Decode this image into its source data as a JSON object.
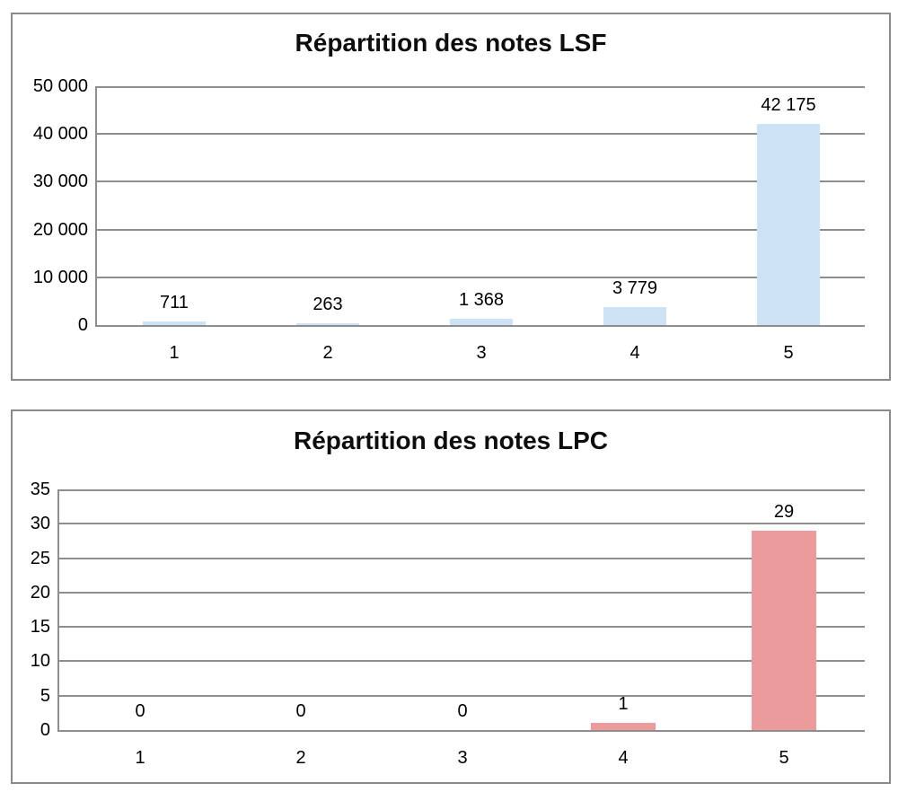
{
  "colors": {
    "bar_blue": "#CCE3F5",
    "bar_pink": "#EC9B9D",
    "gridline": "#8E8E8E",
    "panel_border": "#8A8A8A",
    "text": "#000000",
    "background": "#FFFFFF"
  },
  "chart_data": [
    {
      "type": "bar",
      "title": "Répartition des notes LSF",
      "categories": [
        "1",
        "2",
        "3",
        "4",
        "5"
      ],
      "values": [
        711,
        263,
        1368,
        3779,
        42175
      ],
      "data_labels": [
        "711",
        "263",
        "1 368",
        "3 779",
        "42 175"
      ],
      "xlabel": "",
      "ylabel": "",
      "ylim": [
        0,
        50000
      ],
      "y_tick_interval": 10000,
      "y_tick_labels": [
        "50 000",
        "40 000",
        "30 000",
        "20 000",
        "10 000",
        "0"
      ],
      "grid": true,
      "legend": "none",
      "bar_color": "#CCE3F5"
    },
    {
      "type": "bar",
      "title": "Répartition des notes LPC",
      "categories": [
        "1",
        "2",
        "3",
        "4",
        "5"
      ],
      "values": [
        0,
        0,
        0,
        1,
        29
      ],
      "data_labels": [
        "0",
        "0",
        "0",
        "1",
        "29"
      ],
      "xlabel": "",
      "ylabel": "",
      "ylim": [
        0,
        35
      ],
      "y_tick_interval": 5,
      "y_tick_labels": [
        "35",
        "30",
        "25",
        "20",
        "15",
        "10",
        "5",
        "0"
      ],
      "grid": true,
      "legend": "none",
      "bar_color": "#EC9B9D"
    }
  ]
}
